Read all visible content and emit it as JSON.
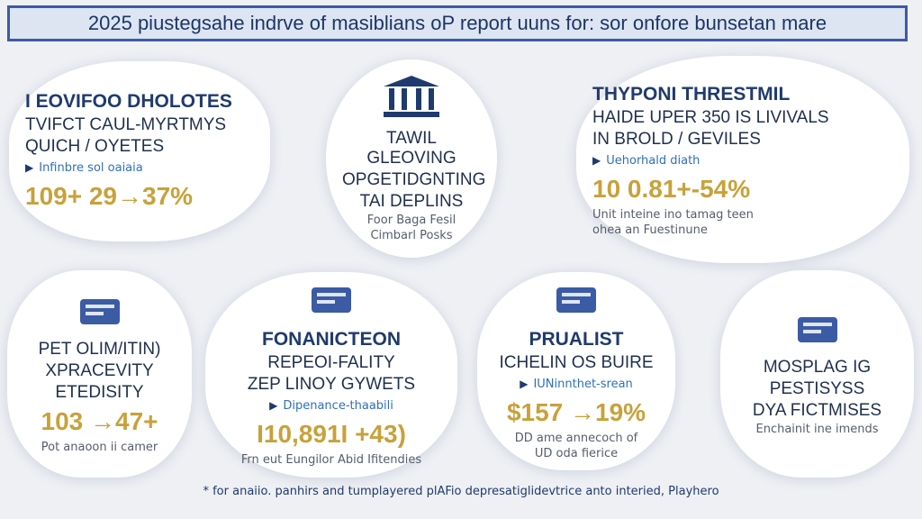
{
  "header": {
    "title": "2025 piustegsahe indrve of masiblians oP report uuns for: sor onfore bunsetan mare"
  },
  "cards": [
    {
      "heading": "I EOVIFOO DHOLOTES",
      "lines": [
        "TVIFCT CAUL-MYRTMYS",
        "QUICH / OYETES"
      ],
      "tag": "Infinbre sol oaiaia",
      "stat": "109+  29→37%",
      "notes": []
    },
    {
      "lines": [
        "TAWIL GLEOVING",
        "OPGETIDGNTING",
        "TAI DEPLINS"
      ],
      "notes": [
        "Foor Baga Fesil",
        "Cimbarl Posks"
      ]
    },
    {
      "heading": "THYPONI THRESTMIL",
      "lines": [
        "HAIDE UPER 350 IS LIVIVALS",
        "IN BROLD / GEVILES"
      ],
      "tag": "Uehorhald diath",
      "stat": "10 0.81+-54%",
      "notes": [
        "Unit inteine ino tamag teen",
        "ohea an Fuestinune"
      ]
    },
    {
      "lines": [
        "PET OLIM/ITIN)",
        "XPRACEVITY",
        "ETEDISITY"
      ],
      "stat": "103 →47+",
      "notes": [
        "Pot anaoon ii camer"
      ]
    },
    {
      "heading": "FONANICTEON",
      "lines": [
        "REPEOI-FALITY",
        "ZEP LINOY GYWETS"
      ],
      "tag": "Dipenance-thaabili",
      "stat": "I10,891I +43)",
      "notes": [
        "Frn eut Eungilor Abid Ifitendies"
      ]
    },
    {
      "heading": "PRUALIST",
      "lines": [
        "ICHELIN OS BUIRE"
      ],
      "tag": "IUNinnthet-srean",
      "stat": "$157 →19%",
      "notes": [
        "DD ame annecoch of",
        "UD oda fierice"
      ]
    },
    {
      "lines": [
        "MOSPLAG IG",
        "PESTISYSS",
        "DYA FICTMISES"
      ],
      "notes": [
        "Enchainit ine imends"
      ]
    }
  ],
  "footer": "* for anaiio. panhirs and tumplayered plAFio depresatiglidevtrice anto interied, Playhero"
}
